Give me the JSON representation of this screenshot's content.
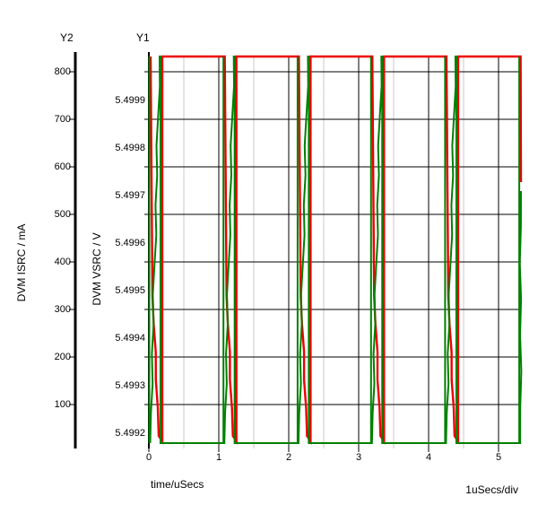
{
  "header": {
    "y2": "Y2",
    "y1": "Y1"
  },
  "axes": {
    "y2": {
      "title": "DVM ISRC / mA",
      "tick_labels": [
        "800",
        "700",
        "600",
        "500",
        "400",
        "300",
        "200",
        "100"
      ]
    },
    "y1": {
      "title": "DVM VSRC / V",
      "tick_labels": [
        "5.4999",
        "5.4998",
        "5.4997",
        "5.4996",
        "5.4995",
        "5.4994",
        "5.4993",
        "5.4992"
      ]
    },
    "x": {
      "title": "time/uSecs",
      "tick_labels": [
        "0",
        "1",
        "2",
        "3",
        "4",
        "5"
      ],
      "scale_label": "1uSecs/div"
    }
  },
  "colors": {
    "vsrc_trace": "#ee0000",
    "isrc_trace": "#008000",
    "grid_major": "#000000",
    "grid_minor": "#c9c9c9",
    "background": "#ffffff"
  },
  "chart_data": {
    "type": "line",
    "title": "",
    "x_unit": "uSecs",
    "x_range": [
      0,
      5.32
    ],
    "x_ticks": [
      0,
      1,
      2,
      3,
      4,
      5
    ],
    "x_scale_per_div": "1uSecs/div",
    "grid": "on",
    "y1_axis": {
      "label": "DVM VSRC / V",
      "ticks": [
        5.4999,
        5.4998,
        5.4997,
        5.4996,
        5.4995,
        5.4994,
        5.4993,
        5.4992
      ],
      "range": [
        5.49915,
        5.5
      ]
    },
    "y2_axis": {
      "label": "DVM ISRC / mA",
      "ticks": [
        800,
        700,
        600,
        500,
        400,
        300,
        200,
        100
      ],
      "range": [
        0,
        845
      ]
    },
    "pulses": {
      "start_times_us": [
        0,
        1.06,
        2.12,
        3.17,
        4.23,
        5.29
      ],
      "period_us": 1.06,
      "rise_time_us": 0.14,
      "high_time_us": 0.02,
      "pulse_width_us": 0.17,
      "isrc_high_mA": 840,
      "isrc_low_mA": 0,
      "vsrc_high_V": 5.49999,
      "vsrc_min_V": 5.4992
    },
    "series": [
      {
        "name": "DVM VSRC",
        "axis": "y1",
        "color": "#ee0000",
        "shape": "Rests at ~5.49999 V; at each pulse start drops steeply to 5.4992 V over ~0.15 us, then snaps vertically back to 5.49999 V"
      },
      {
        "name": "DVM ISRC",
        "axis": "y2",
        "color": "#008000",
        "shape": "Rests at 0 mA; at each pulse start a vertical spike to ~840 mA, then a jagged ramp from 0 to ~840 mA over ~0.14 us, then a vertical fall back to 0 mA"
      }
    ]
  }
}
